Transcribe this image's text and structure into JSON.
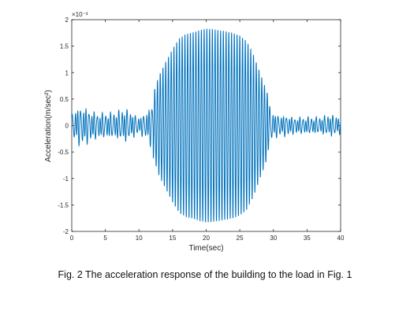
{
  "chart_data": {
    "type": "line",
    "xlabel": "Time(sec)",
    "ylabel": "Acceleration(m/sec²)",
    "exponent_label": "×10⁻³",
    "xlim": [
      0,
      40
    ],
    "ylim": [
      -2,
      2
    ],
    "xticks": [
      "0",
      "5",
      "10",
      "15",
      "20",
      "25",
      "30",
      "35",
      "40"
    ],
    "yticks": [
      "-2",
      "-1.5",
      "-1",
      "-0.5",
      "0",
      "0.5",
      "1",
      "1.5",
      "2"
    ],
    "grid": false,
    "line_color": "#0072BD",
    "series": [
      {
        "x": [
          0,
          1,
          2,
          3,
          4,
          5,
          6,
          7,
          8,
          9,
          10,
          11,
          12,
          13,
          14,
          15,
          16,
          17,
          18,
          19,
          20,
          21,
          22,
          23,
          24,
          25,
          26,
          27,
          28,
          29,
          30,
          31,
          32,
          33,
          34,
          35,
          36,
          37,
          38,
          39,
          40
        ],
        "envelope": [
          0.3,
          0.45,
          0.45,
          0.35,
          0.3,
          0.3,
          0.3,
          0.35,
          0.4,
          0.3,
          0.2,
          0.3,
          0.55,
          0.95,
          1.2,
          1.45,
          1.65,
          1.73,
          1.76,
          1.8,
          1.83,
          1.82,
          1.8,
          1.78,
          1.75,
          1.7,
          1.6,
          1.35,
          1.0,
          0.65,
          0.3,
          0.25,
          0.25,
          0.2,
          0.2,
          0.2,
          0.2,
          0.2,
          0.25,
          0.25,
          0.2
        ],
        "dominant_frequency_hz": 2.45
      }
    ]
  },
  "caption": "Fig. 2 The acceleration response of the building to the load in Fig. 1"
}
